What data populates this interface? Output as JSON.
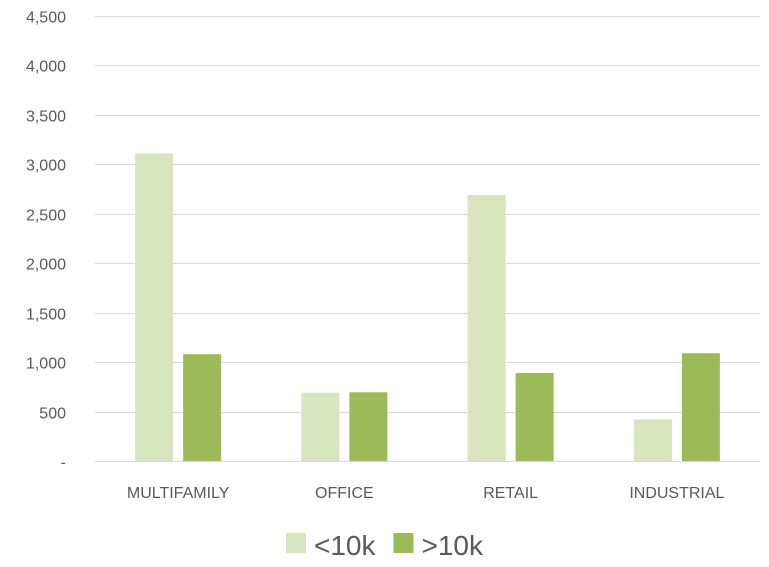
{
  "chart_data": {
    "type": "bar",
    "title": "",
    "xlabel": "",
    "ylabel": "",
    "categories": [
      "MULTIFAMILY",
      "OFFICE",
      "RETAIL",
      "INDUSTRIAL"
    ],
    "series": [
      {
        "name": "<10k",
        "color": "#d7e4bd",
        "values": [
          3110,
          690,
          2690,
          420
        ]
      },
      {
        "name": ">10k",
        "color": "#9bbb59",
        "values": [
          1080,
          695,
          890,
          1090
        ]
      }
    ],
    "ylim": [
      0,
      4500
    ],
    "yticks": [
      0,
      500,
      1000,
      1500,
      2000,
      2500,
      3000,
      3500,
      4000,
      4500
    ],
    "ytick_labels": [
      "-",
      "500",
      "1,000",
      "1,500",
      "2,000",
      "2,500",
      "3,000",
      "3,500",
      "4,000",
      "4,500"
    ],
    "grid": true,
    "legend_position": "bottom"
  }
}
